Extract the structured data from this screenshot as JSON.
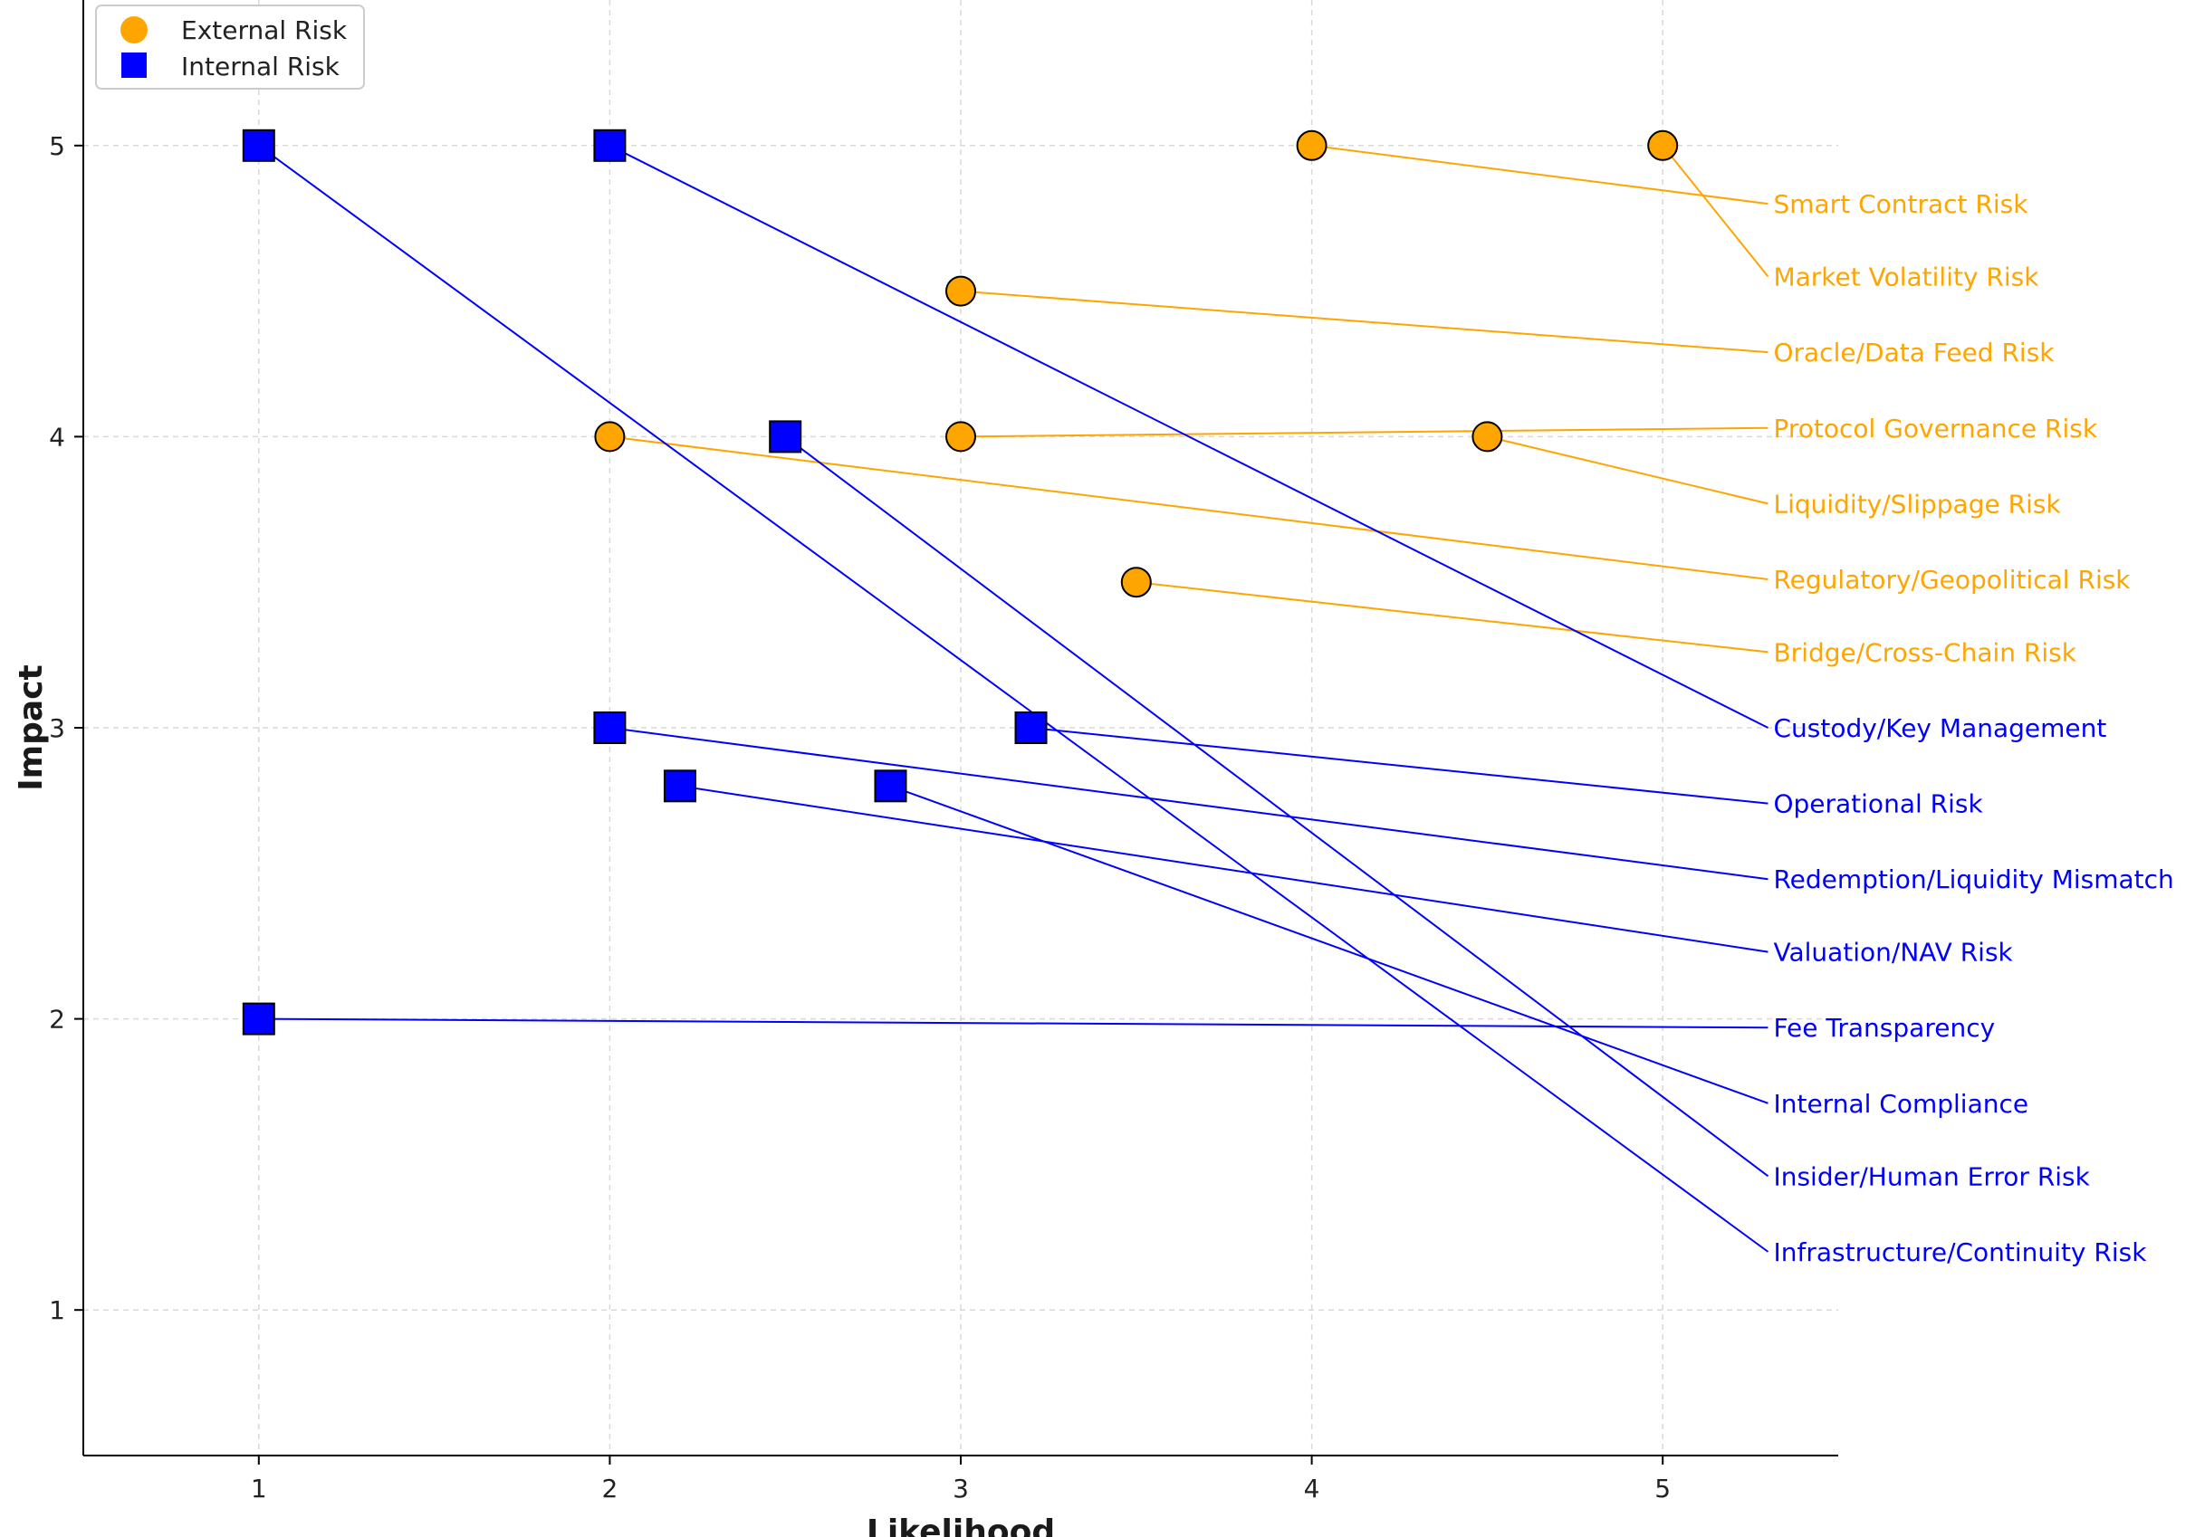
{
  "chart_data": {
    "type": "scatter",
    "title": "",
    "xlabel": "Likelihood",
    "ylabel": "Impact",
    "xlim": [
      0.5,
      5.5
    ],
    "ylim": [
      0.5,
      5.5
    ],
    "xticks": [
      1,
      2,
      3,
      4,
      5
    ],
    "yticks": [
      1,
      2,
      3,
      4,
      5
    ],
    "grid": true,
    "legend_position": "top-left",
    "colors": {
      "external": "#FFA500",
      "internal": "#0000FF",
      "grid": "#d9d9d9",
      "axis": "#000000"
    },
    "legend": [
      {
        "key": "external",
        "label": "External Risk",
        "marker": "circle"
      },
      {
        "key": "internal",
        "label": "Internal Risk",
        "marker": "square"
      }
    ],
    "series": [
      {
        "name": "External Risk",
        "key": "external",
        "points": [
          {
            "label": "Smart Contract Risk",
            "likelihood": 4,
            "impact": 5,
            "label_impact": 4.8
          },
          {
            "label": "Market Volatility Risk",
            "likelihood": 5,
            "impact": 5,
            "label_impact": 4.55
          },
          {
            "label": "Oracle/Data Feed Risk",
            "likelihood": 3,
            "impact": 4.5,
            "label_impact": 4.29
          },
          {
            "label": "Protocol Governance Risk",
            "likelihood": 3,
            "impact": 4,
            "label_impact": 4.03
          },
          {
            "label": "Liquidity/Slippage Risk",
            "likelihood": 4.5,
            "impact": 4,
            "label_impact": 3.77
          },
          {
            "label": "Regulatory/Geopolitical Risk",
            "likelihood": 2,
            "impact": 4,
            "label_impact": 3.51
          },
          {
            "label": "Bridge/Cross-Chain Risk",
            "likelihood": 3.5,
            "impact": 3.5,
            "label_impact": 3.26
          }
        ]
      },
      {
        "name": "Internal Risk",
        "key": "internal",
        "points": [
          {
            "label": "Custody/Key Management",
            "likelihood": 2,
            "impact": 5,
            "label_impact": 3.0
          },
          {
            "label": "Operational Risk",
            "likelihood": 3.2,
            "impact": 3,
            "label_impact": 2.74
          },
          {
            "label": "Redemption/Liquidity Mismatch",
            "likelihood": 2,
            "impact": 3,
            "label_impact": 2.48
          },
          {
            "label": "Valuation/NAV Risk",
            "likelihood": 2.2,
            "impact": 2.8,
            "label_impact": 2.23
          },
          {
            "label": "Fee Transparency",
            "likelihood": 1,
            "impact": 2,
            "label_impact": 1.97
          },
          {
            "label": "Internal Compliance",
            "likelihood": 2.8,
            "impact": 2.8,
            "label_impact": 1.71
          },
          {
            "label": "Insider/Human Error Risk",
            "likelihood": 2.5,
            "impact": 4,
            "label_impact": 1.46
          },
          {
            "label": "Infrastructure/Continuity Risk",
            "likelihood": 1,
            "impact": 5,
            "label_impact": 1.2
          }
        ]
      }
    ],
    "label_anchor_likelihood": 5.3
  }
}
